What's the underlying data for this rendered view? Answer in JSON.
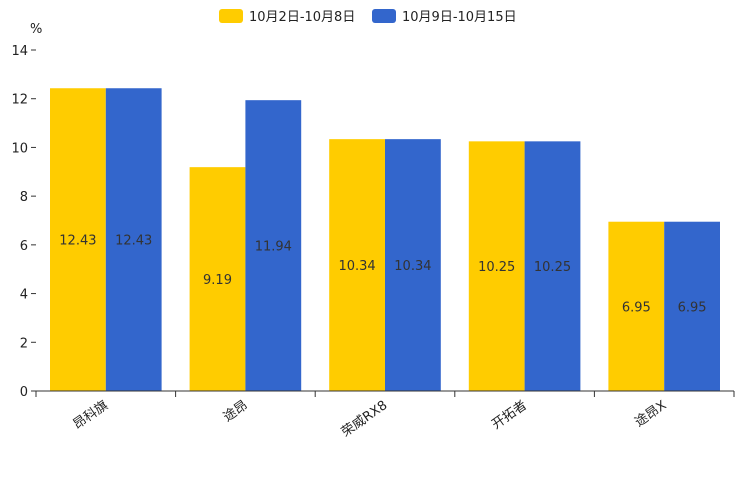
{
  "chart_data": {
    "type": "bar",
    "title": "",
    "xlabel": "",
    "ylabel": "%",
    "ylim": [
      0,
      14
    ],
    "yticks": [
      0,
      2,
      4,
      6,
      8,
      10,
      12,
      14
    ],
    "grid": false,
    "legend_position": "top-center",
    "categories": [
      "昂科旗",
      "途昂",
      "荣威RX8",
      "开拓者",
      "途昂X"
    ],
    "series": [
      {
        "name": "10月2日-10月8日",
        "color": "#FFCC00",
        "values": [
          12.43,
          9.19,
          10.34,
          10.25,
          6.95
        ],
        "labels": [
          "12.43",
          "9.19",
          "10.34",
          "10.25",
          "6.95"
        ]
      },
      {
        "name": "10月9日-10月15日",
        "color": "#3366CC",
        "values": [
          12.43,
          11.94,
          10.34,
          10.25,
          6.95
        ],
        "labels": [
          "12.43",
          "11.94",
          "10.34",
          "10.25",
          "6.95"
        ]
      }
    ]
  }
}
